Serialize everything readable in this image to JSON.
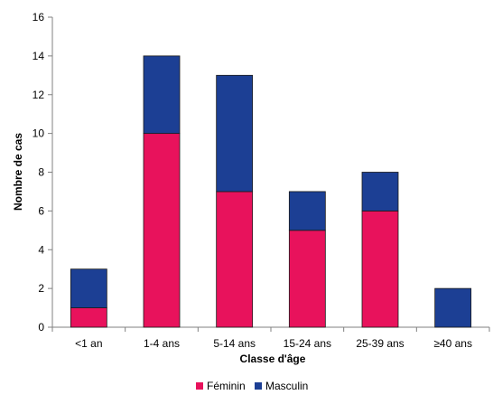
{
  "chart_data": {
    "type": "bar",
    "stacked": true,
    "categories": [
      "<1 an",
      "1-4 ans",
      "5-14 ans",
      "15-24 ans",
      "25-39 ans",
      "≥40 ans"
    ],
    "series": [
      {
        "name": "Féminin",
        "color": "#e8125c",
        "values": [
          1,
          10,
          7,
          5,
          6,
          0
        ]
      },
      {
        "name": "Masculin",
        "color": "#1c3f94",
        "values": [
          2,
          4,
          6,
          2,
          2,
          2
        ]
      }
    ],
    "xlabel": "Classe d'âge",
    "ylabel": "Nombre de cas",
    "ylim": [
      0,
      16
    ],
    "yticks": [
      0,
      2,
      4,
      6,
      8,
      10,
      12,
      14,
      16
    ],
    "grid": false,
    "legend_position": "bottom"
  }
}
